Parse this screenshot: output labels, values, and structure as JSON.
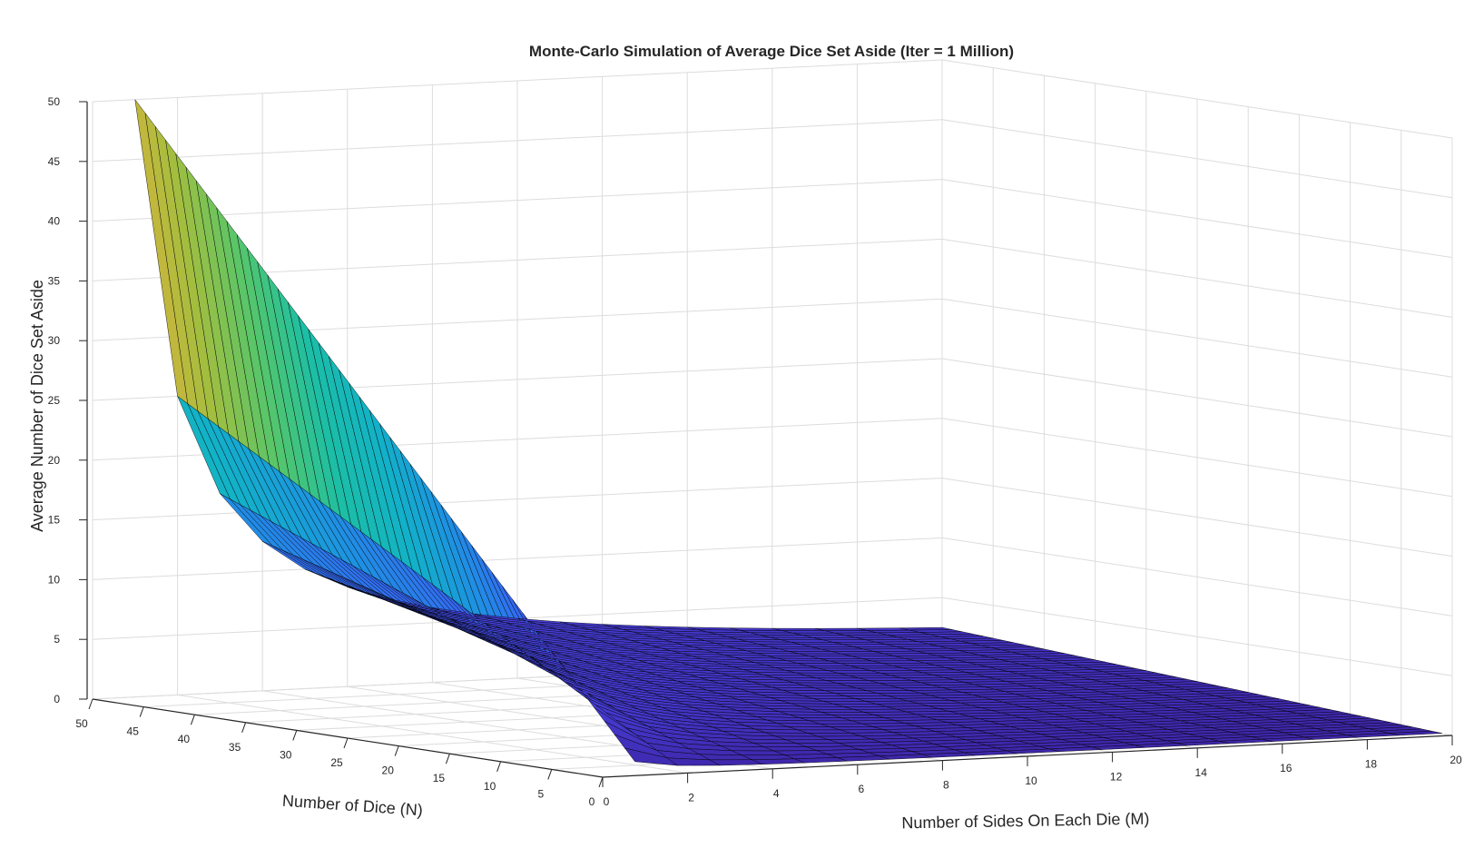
{
  "chart_data": {
    "type": "surface",
    "title": "Monte-Carlo Simulation of Average Dice Set Aside (Iter = 1 Million)",
    "xlabel": "Number of Sides On Each Die (M)",
    "ylabel": "Number of Dice (N)",
    "zlabel": "Average Number of Dice Set Aside",
    "xlim": [
      0,
      20
    ],
    "ylim": [
      0,
      50
    ],
    "zlim": [
      0,
      50
    ],
    "x_ticks": [
      "0",
      "2",
      "4",
      "6",
      "8",
      "10",
      "12",
      "14",
      "16",
      "18",
      "20"
    ],
    "y_ticks": [
      "0",
      "5",
      "10",
      "15",
      "20",
      "25",
      "30",
      "35",
      "40",
      "45",
      "50"
    ],
    "z_ticks": [
      "0",
      "5",
      "10",
      "15",
      "20",
      "25",
      "30",
      "35",
      "40",
      "45",
      "50"
    ],
    "M_range": [
      1,
      20
    ],
    "N_range": [
      1,
      50
    ],
    "grid": true,
    "colormap": "parula",
    "corner_values": [
      {
        "M": 1,
        "N": 50,
        "z": 50
      },
      {
        "M": 2,
        "N": 50,
        "z": 25
      },
      {
        "M": 3,
        "N": 50,
        "z": 16.7
      },
      {
        "M": 4,
        "N": 50,
        "z": 12.5
      },
      {
        "M": 1,
        "N": 1,
        "z": 1
      },
      {
        "M": 20,
        "N": 1,
        "z": 0.05
      },
      {
        "M": 8,
        "N": 50,
        "z": 6.25
      },
      {
        "M": 20,
        "N": 50,
        "z": 2.5
      }
    ],
    "colors": {
      "axis": "#262626",
      "grid": "#dcdcdc",
      "edge": "#000000"
    }
  }
}
